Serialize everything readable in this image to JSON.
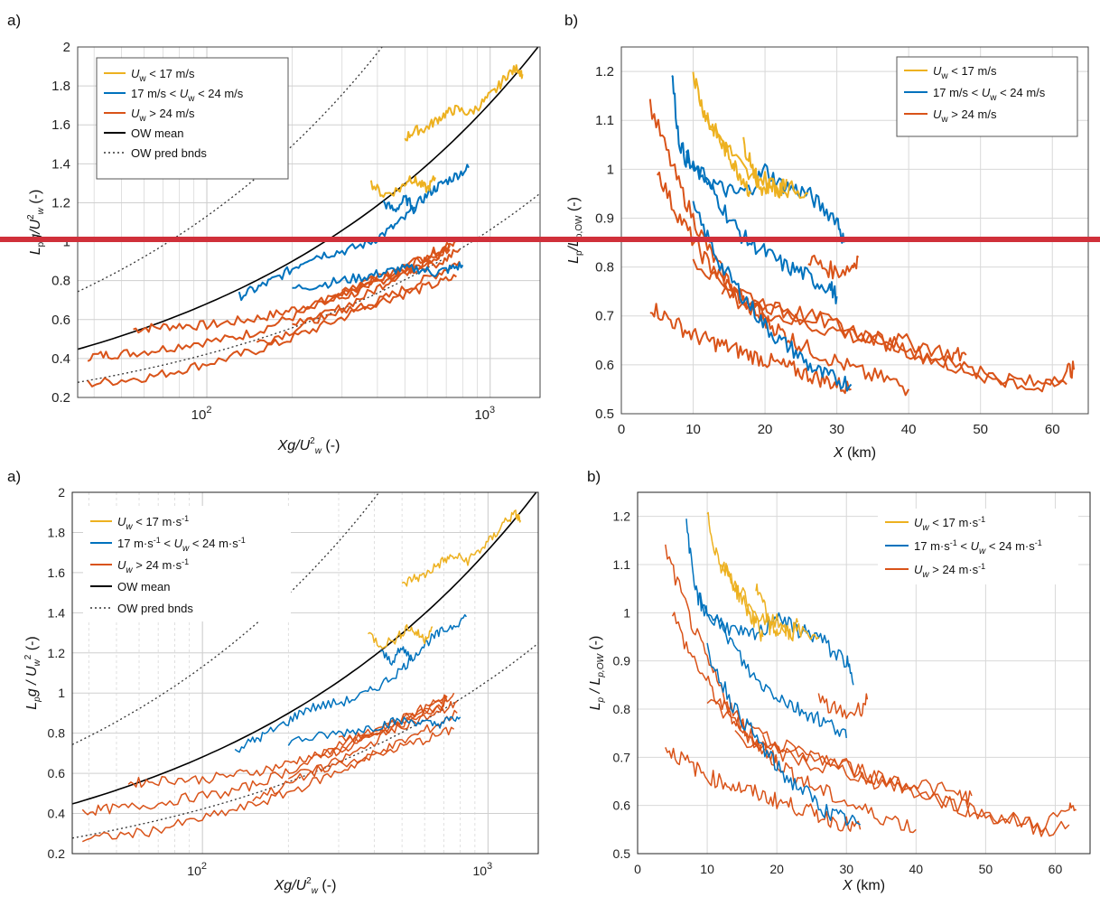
{
  "colors": {
    "low": "#EDB120",
    "mid": "#0072BD",
    "high": "#D95319",
    "mean": "#000000",
    "divider": "#d0303a",
    "grid": "#d8d8d8"
  },
  "legend_ow_mean": "OW mean",
  "legend_ow_bnds": "OW pred bnds",
  "chart_data": [
    {
      "panel": "a)",
      "type": "line",
      "version": "top",
      "xscale": "log",
      "xlim": [
        35,
        1500
      ],
      "ylim": [
        0.2,
        2
      ],
      "xlabel": "Xg/U_w^2 (-)",
      "ylabel": "L_p g/U_w^2 (-)",
      "legend": [
        "U_w < 17 m/s",
        "17 m/s < U_w < 24 m/s",
        "U_w > 24 m/s",
        "OW mean",
        "OW pred bnds"
      ],
      "series": [
        {
          "group": "low",
          "x": [
            380,
            420,
            480,
            520,
            560,
            600,
            640
          ],
          "y": [
            1.3,
            1.24,
            1.27,
            1.33,
            1.3,
            1.27,
            1.33
          ]
        },
        {
          "group": "low",
          "x": [
            500,
            540,
            590,
            640,
            700,
            760,
            850,
            950,
            1050,
            1150,
            1250,
            1300
          ],
          "y": [
            1.53,
            1.57,
            1.58,
            1.62,
            1.66,
            1.68,
            1.66,
            1.72,
            1.78,
            1.86,
            1.89,
            1.86
          ]
        },
        {
          "group": "mid",
          "x": [
            130,
            150,
            170,
            200,
            230,
            270,
            320,
            380,
            440,
            500,
            560,
            620,
            680,
            760,
            840
          ],
          "y": [
            0.72,
            0.76,
            0.8,
            0.86,
            0.92,
            0.94,
            0.96,
            1.0,
            1.06,
            1.12,
            1.2,
            1.26,
            1.3,
            1.34,
            1.38
          ]
        },
        {
          "group": "mid",
          "x": [
            200,
            250,
            300,
            360,
            420,
            480,
            560,
            640,
            720,
            800
          ],
          "y": [
            0.76,
            0.78,
            0.8,
            0.82,
            0.84,
            0.86,
            0.86,
            0.84,
            0.86,
            0.88
          ]
        },
        {
          "group": "mid",
          "x": [
            420,
            460,
            500,
            540
          ],
          "y": [
            1.2,
            1.16,
            1.22,
            1.18
          ]
        },
        {
          "group": "high",
          "x": [
            55,
            65,
            80,
            100,
            125,
            155,
            190,
            230,
            280,
            340,
            410,
            500,
            600,
            720
          ],
          "y": [
            0.55,
            0.56,
            0.57,
            0.57,
            0.59,
            0.61,
            0.64,
            0.68,
            0.7,
            0.74,
            0.8,
            0.85,
            0.9,
            0.96
          ]
        },
        {
          "group": "high",
          "x": [
            38,
            45,
            55,
            70,
            90,
            120,
            150,
            190,
            240,
            300,
            370,
            450,
            550,
            680,
            780
          ],
          "y": [
            0.41,
            0.42,
            0.43,
            0.45,
            0.48,
            0.5,
            0.54,
            0.6,
            0.66,
            0.72,
            0.78,
            0.82,
            0.86,
            0.9,
            0.96
          ]
        },
        {
          "group": "high",
          "x": [
            38,
            50,
            65,
            85,
            110,
            140,
            180,
            230,
            290,
            360,
            440,
            540,
            660,
            780
          ],
          "y": [
            0.27,
            0.29,
            0.31,
            0.35,
            0.39,
            0.43,
            0.48,
            0.54,
            0.6,
            0.66,
            0.72,
            0.78,
            0.84,
            0.9
          ]
        },
        {
          "group": "high",
          "x": [
            150,
            190,
            240,
            300,
            380,
            460,
            560,
            680,
            760
          ],
          "y": [
            0.48,
            0.53,
            0.6,
            0.66,
            0.74,
            0.82,
            0.88,
            0.94,
            1.0
          ]
        },
        {
          "group": "high",
          "x": [
            200,
            260,
            330,
            420,
            520,
            640,
            760
          ],
          "y": [
            0.58,
            0.62,
            0.66,
            0.7,
            0.74,
            0.78,
            0.82
          ]
        },
        {
          "group": "high",
          "x": [
            260,
            330,
            420,
            520,
            620,
            720
          ],
          "y": [
            0.7,
            0.76,
            0.82,
            0.88,
            0.94,
            0.98
          ]
        },
        {
          "group": "high",
          "x": [
            300,
            380,
            480,
            600,
            720
          ],
          "y": [
            0.76,
            0.8,
            0.86,
            0.92,
            0.98
          ]
        }
      ]
    },
    {
      "panel": "b)",
      "type": "line",
      "version": "top",
      "xlim": [
        0,
        65
      ],
      "ylim": [
        0.5,
        1.25
      ],
      "xlabel": "X (km)",
      "ylabel": "L_p/L_p,OW (-)",
      "legend": [
        "U_w < 17 m/s",
        "17 m/s < U_w < 24 m/s",
        "U_w > 24 m/s"
      ],
      "series": [
        {
          "group": "low",
          "x": [
            10,
            11,
            12,
            13,
            14,
            15,
            16,
            17,
            18
          ],
          "y": [
            1.2,
            1.14,
            1.1,
            1.08,
            1.05,
            1.03,
            1.0,
            0.98,
            0.95
          ]
        },
        {
          "group": "low",
          "x": [
            12,
            14,
            16,
            18,
            20,
            22,
            24,
            26
          ],
          "y": [
            1.1,
            1.06,
            1.02,
            0.98,
            0.98,
            0.96,
            0.96,
            0.95
          ]
        },
        {
          "group": "low",
          "x": [
            17,
            18,
            19,
            20,
            21,
            22,
            23
          ],
          "y": [
            1.05,
            1.02,
            0.97,
            0.96,
            0.97,
            0.95,
            0.98
          ]
        },
        {
          "group": "mid",
          "x": [
            7,
            8,
            9,
            10,
            12,
            14,
            16,
            18,
            20,
            22,
            24,
            26,
            28,
            30,
            31
          ],
          "y": [
            1.2,
            1.06,
            1.02,
            1.0,
            0.98,
            0.96,
            0.95,
            0.96,
            1.0,
            0.97,
            0.96,
            0.95,
            0.92,
            0.9,
            0.85
          ]
        },
        {
          "group": "mid",
          "x": [
            9,
            11,
            13,
            15,
            17,
            19,
            21,
            23,
            25,
            27,
            29,
            30
          ],
          "y": [
            1.03,
            0.99,
            0.95,
            0.9,
            0.86,
            0.84,
            0.82,
            0.8,
            0.79,
            0.77,
            0.76,
            0.74
          ]
        },
        {
          "group": "mid",
          "x": [
            10,
            12,
            14,
            16,
            18,
            20,
            22,
            24,
            26,
            28,
            30,
            32
          ],
          "y": [
            0.92,
            0.86,
            0.8,
            0.76,
            0.72,
            0.68,
            0.65,
            0.63,
            0.6,
            0.58,
            0.57,
            0.56
          ]
        },
        {
          "group": "high",
          "x": [
            4,
            6,
            8,
            10,
            12,
            14,
            16,
            18,
            20
          ],
          "y": [
            1.13,
            1.05,
            0.97,
            0.9,
            0.84,
            0.79,
            0.75,
            0.72,
            0.7
          ]
        },
        {
          "group": "high",
          "x": [
            5,
            7,
            9,
            11,
            13,
            15,
            17,
            19,
            21,
            23,
            25,
            28,
            31,
            34,
            37,
            40
          ],
          "y": [
            1.0,
            0.93,
            0.88,
            0.83,
            0.79,
            0.76,
            0.73,
            0.7,
            0.68,
            0.66,
            0.64,
            0.62,
            0.6,
            0.58,
            0.57,
            0.55
          ]
        },
        {
          "group": "high",
          "x": [
            4,
            6,
            8,
            10,
            12,
            14,
            16,
            18,
            20,
            22,
            24,
            26,
            28,
            30,
            32
          ],
          "y": [
            0.72,
            0.7,
            0.68,
            0.66,
            0.65,
            0.64,
            0.63,
            0.62,
            0.61,
            0.6,
            0.59,
            0.58,
            0.57,
            0.56,
            0.55
          ]
        },
        {
          "group": "high",
          "x": [
            10,
            14,
            18,
            22,
            26,
            30,
            34,
            38,
            42,
            46,
            50,
            54,
            58,
            62,
            63
          ],
          "y": [
            0.82,
            0.77,
            0.74,
            0.71,
            0.7,
            0.68,
            0.66,
            0.64,
            0.62,
            0.6,
            0.58,
            0.57,
            0.56,
            0.59,
            0.59
          ]
        },
        {
          "group": "high",
          "x": [
            14,
            18,
            22,
            26,
            30,
            34,
            38,
            42,
            46,
            50,
            54,
            58,
            62
          ],
          "y": [
            0.75,
            0.72,
            0.7,
            0.68,
            0.67,
            0.65,
            0.64,
            0.62,
            0.6,
            0.58,
            0.57,
            0.55,
            0.56
          ]
        },
        {
          "group": "high",
          "x": [
            18,
            22,
            26,
            30,
            34,
            38,
            42,
            46,
            48
          ],
          "y": [
            0.73,
            0.72,
            0.7,
            0.68,
            0.66,
            0.65,
            0.64,
            0.62,
            0.62
          ]
        },
        {
          "group": "high",
          "x": [
            26,
            28,
            30,
            32,
            33
          ],
          "y": [
            0.82,
            0.8,
            0.79,
            0.8,
            0.82
          ]
        }
      ]
    },
    {
      "panel": "a)",
      "type": "line",
      "version": "bottom",
      "xscale": "log",
      "xlim": [
        35,
        1500
      ],
      "ylim": [
        0.2,
        2
      ],
      "xlabel": "Xg/U_w^2 (-)",
      "ylabel": "L_p g / U_w^2 (-)",
      "legend": [
        "U_w < 17 m·s⁻¹",
        "17 m·s⁻¹ < U_w < 24 m·s⁻¹",
        "U_w > 24 m·s⁻¹",
        "OW mean",
        "OW pred bnds"
      ]
    },
    {
      "panel": "b)",
      "type": "line",
      "version": "bottom",
      "xlim": [
        0,
        65
      ],
      "ylim": [
        0.5,
        1.25
      ],
      "xlabel": "X (km)",
      "ylabel": "L_p / L_p,OW (-)",
      "legend": [
        "U_w < 17 m·s⁻¹",
        "17 m·s⁻¹ < U_w < 24 m·s⁻¹",
        "U_w > 24 m·s⁻¹"
      ]
    }
  ]
}
